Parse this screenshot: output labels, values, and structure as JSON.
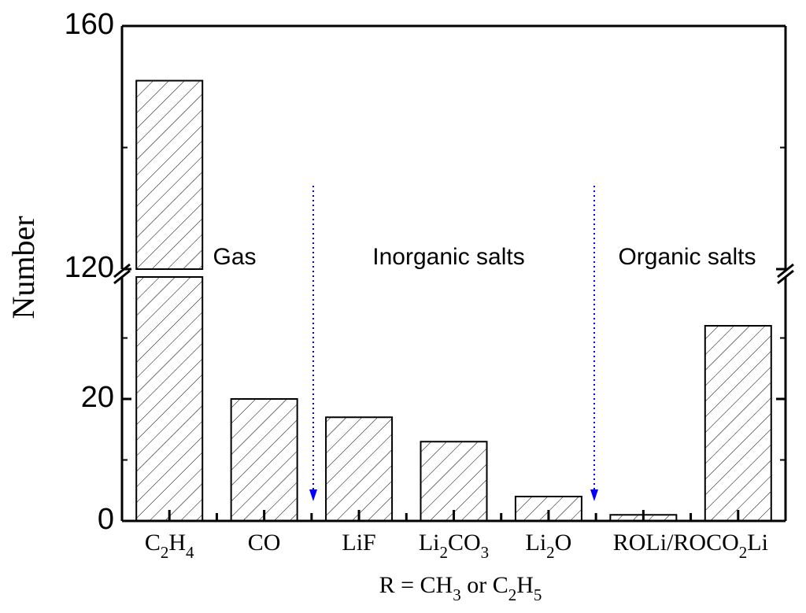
{
  "chart_data": {
    "type": "bar",
    "y_label": "Number",
    "x_label": "R = CH3 or C2H5",
    "categories": [
      "C2H4",
      "CO",
      "LiF",
      "Li2CO3",
      "Li2O",
      "ROLi/ROCO2Li",
      null
    ],
    "values": [
      151,
      20,
      17,
      13,
      4,
      1,
      32
    ],
    "color": "#000000",
    "axis_segments": [
      {
        "ylim": [
          0,
          40
        ],
        "yticks": [
          0,
          20
        ],
        "minor_yticks": [
          10,
          30
        ]
      },
      {
        "ylim": [
          120,
          160
        ],
        "yticks": [
          120,
          160
        ],
        "minor_yticks": [
          140
        ]
      }
    ],
    "annotations": [
      "Gas",
      "Inorganic salts",
      "Organic salts"
    ]
  }
}
